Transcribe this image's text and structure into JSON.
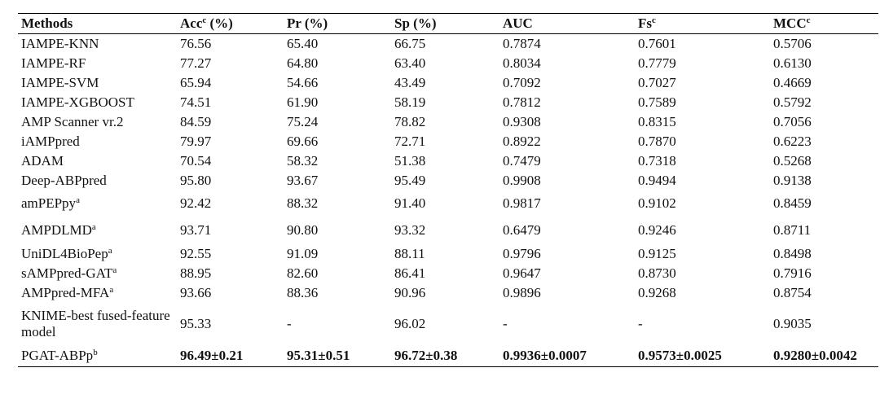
{
  "table": {
    "headers": [
      {
        "text": "Methods",
        "sup": ""
      },
      {
        "text": "Acc",
        "sup": "c",
        "suffix": " (%)"
      },
      {
        "text": "Pr (%)",
        "sup": ""
      },
      {
        "text": "Sp (%)",
        "sup": ""
      },
      {
        "text": "AUC",
        "sup": ""
      },
      {
        "text": "Fs",
        "sup": "c"
      },
      {
        "text": "MCC",
        "sup": "c"
      }
    ],
    "rows": [
      {
        "method": "IAMPE-KNN",
        "sup": "",
        "values": [
          "76.56",
          "65.40",
          "66.75",
          "0.7874",
          "0.7601",
          "0.5706"
        ]
      },
      {
        "method": "IAMPE-RF",
        "sup": "",
        "values": [
          "77.27",
          "64.80",
          "63.40",
          "0.8034",
          "0.7779",
          "0.6130"
        ]
      },
      {
        "method": "IAMPE-SVM",
        "sup": "",
        "values": [
          "65.94",
          "54.66",
          "43.49",
          "0.7092",
          "0.7027",
          "0.4669"
        ]
      },
      {
        "method": "IAMPE-XGBOOST",
        "sup": "",
        "values": [
          "74.51",
          "61.90",
          "58.19",
          "0.7812",
          "0.7589",
          "0.5792"
        ]
      },
      {
        "method": "AMP Scanner vr.2",
        "sup": "",
        "values": [
          "84.59",
          "75.24",
          "78.82",
          "0.9308",
          "0.8315",
          "0.7056"
        ]
      },
      {
        "method": "iAMPpred",
        "sup": "",
        "values": [
          "79.97",
          "69.66",
          "72.71",
          "0.8922",
          "0.7870",
          "0.6223"
        ]
      },
      {
        "method": "ADAM",
        "sup": "",
        "values": [
          "70.54",
          "58.32",
          "51.38",
          "0.7479",
          "0.7318",
          "0.5268"
        ]
      },
      {
        "method": "Deep-ABPpred",
        "sup": "",
        "values": [
          "95.80",
          "93.67",
          "95.49",
          "0.9908",
          "0.9494",
          "0.9138"
        ]
      },
      {
        "method": "amPEPpy",
        "sup": "a",
        "values": [
          "92.42",
          "88.32",
          "91.40",
          "0.9817",
          "0.9102",
          "0.8459"
        ]
      },
      {
        "method": "AMPDLMD",
        "sup": "a",
        "values": [
          "93.71",
          "90.80",
          "93.32",
          "0.6479",
          "0.9246",
          "0.8711"
        ]
      },
      {
        "method": "UniDL4BioPep",
        "sup": "a",
        "values": [
          "92.55",
          "91.09",
          "88.11",
          "0.9796",
          "0.9125",
          "0.8498"
        ]
      },
      {
        "method": "sAMPpred-GAT",
        "sup": "a",
        "values": [
          "88.95",
          "82.60",
          "86.41",
          "0.9647",
          "0.8730",
          "0.7916"
        ]
      },
      {
        "method": "AMPpred-MFA",
        "sup": "a",
        "values": [
          "93.66",
          "88.36",
          "90.96",
          "0.9896",
          "0.9268",
          "0.8754"
        ]
      },
      {
        "method": "KNIME-best fused-feature model",
        "sup": "",
        "values": [
          "95.33",
          "-",
          "96.02",
          "-",
          "-",
          "0.9035"
        ]
      },
      {
        "method": "PGAT-ABPp",
        "sup": "b",
        "values": [
          "96.49±0.21",
          "95.31±0.51",
          "96.72±0.38",
          "0.9936±0.0007",
          "0.9573±0.0025",
          "0.9280±0.0042"
        ]
      }
    ]
  }
}
